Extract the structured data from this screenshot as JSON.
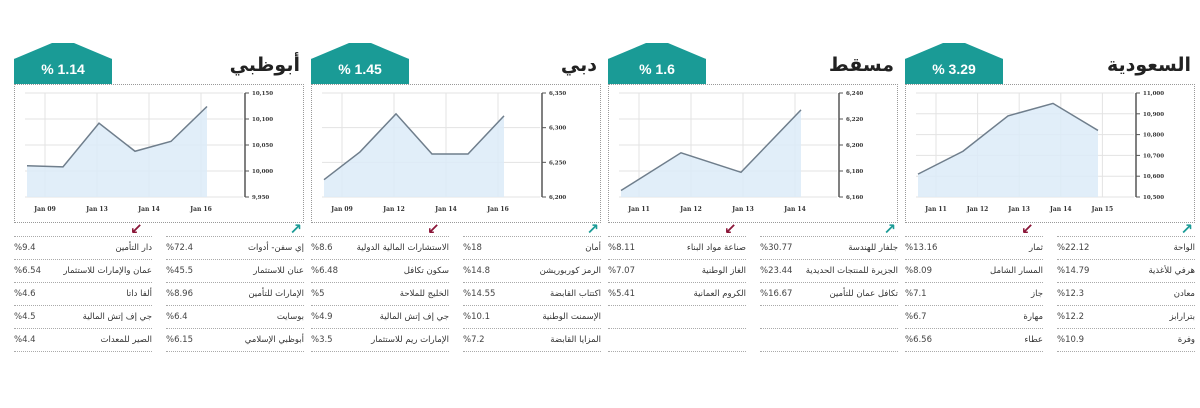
{
  "colors": {
    "accent": "#1a9b96",
    "down": "#8a1538",
    "area_fill": "#dcebf8",
    "line": "#6f7e8c"
  },
  "panels": [
    {
      "id": "saudi",
      "title": "السعودية",
      "change": "% 3.29",
      "gainers": [
        {
          "name": "الواحة",
          "value": "%22.12"
        },
        {
          "name": "هرفي للأغذية",
          "value": "%14.79"
        },
        {
          "name": "معادن",
          "value": "%12.3"
        },
        {
          "name": "بترارابز",
          "value": "%12.2"
        },
        {
          "name": "وفرة",
          "value": "%10.9"
        }
      ],
      "losers": [
        {
          "name": "ثمار",
          "value": "%13.16"
        },
        {
          "name": "المسار الشامل",
          "value": "%8.09"
        },
        {
          "name": "جاز",
          "value": "%7.1"
        },
        {
          "name": "مهارة",
          "value": "%6.7"
        },
        {
          "name": "عطاء",
          "value": "%6.56"
        }
      ]
    },
    {
      "id": "muscat",
      "title": "مسقط",
      "change": "% 1.6",
      "gainers": [
        {
          "name": "جلفار للهندسة",
          "value": "%30.77"
        },
        {
          "name": "الجزيرة للمنتجات الحديدية",
          "value": "%23.44"
        },
        {
          "name": "تكافل عمان للتأمين",
          "value": "%16.67"
        },
        {
          "name": "",
          "value": ""
        },
        {
          "name": "",
          "value": ""
        }
      ],
      "losers": [
        {
          "name": "صناعة مواد البناء",
          "value": "%8.11"
        },
        {
          "name": "الغاز الوطنية",
          "value": "%7.07"
        },
        {
          "name": "الكروم العمانية",
          "value": "%5.41"
        },
        {
          "name": "",
          "value": ""
        },
        {
          "name": "",
          "value": ""
        }
      ]
    },
    {
      "id": "dubai",
      "title": "دبي",
      "change": "% 1.45",
      "gainers": [
        {
          "name": "أمان",
          "value": "%18"
        },
        {
          "name": "الرمز كوربوريشن",
          "value": "%14.8"
        },
        {
          "name": "اكتتاب القابضة",
          "value": "%14.55"
        },
        {
          "name": "الإسمنت الوطنية",
          "value": "%10.1"
        },
        {
          "name": "المزايا القابضة",
          "value": "%7.2"
        }
      ],
      "losers": [
        {
          "name": "الاستشارات المالية الدولية",
          "value": "%8.6"
        },
        {
          "name": "سكون تكافل",
          "value": "%6.48"
        },
        {
          "name": "الخليج للملاحة",
          "value": "%5"
        },
        {
          "name": "جي إف إتش المالية",
          "value": "%4.9"
        },
        {
          "name": "الإمارات ريم للاستثمار",
          "value": "%3.5"
        }
      ]
    },
    {
      "id": "abudhabi",
      "title": "أبوظبي",
      "change": "% 1.14",
      "gainers": [
        {
          "name": "إي سفن- أدوات",
          "value": "%72.4"
        },
        {
          "name": "عنان للاستثمار",
          "value": "%45.5"
        },
        {
          "name": "الإمارات للتأمين",
          "value": "%8.96"
        },
        {
          "name": "بوسايت",
          "value": "%6.4"
        },
        {
          "name": "أبوظبي الإسلامي",
          "value": "%6.15"
        }
      ],
      "losers": [
        {
          "name": "دار التأمين",
          "value": "%9.4"
        },
        {
          "name": "عمان والإمارات للاستثمار",
          "value": "%6.54"
        },
        {
          "name": "ألفا داتا",
          "value": "%4.6"
        },
        {
          "name": "جي إف إتش المالية",
          "value": "%4.5"
        },
        {
          "name": "الصير للمعدات",
          "value": "%4.4"
        }
      ]
    }
  ],
  "chart_data": [
    {
      "type": "area",
      "title": "السعودية",
      "change_label": "% 3.29",
      "x": [
        "Jan 10",
        "Jan 11",
        "Jan 12",
        "Jan 13",
        "Jan 14"
      ],
      "values": [
        10610,
        10720,
        10890,
        10950,
        10820
      ],
      "xticks": [
        "Jan 11",
        "Jan 12",
        "Jan 13",
        "Jan 14",
        "Jan 15"
      ],
      "yticks": [
        11000,
        10900,
        10800,
        10700,
        10600,
        10500
      ],
      "ylim": [
        10500,
        11000
      ],
      "grid": true,
      "y_axis_position": "right"
    },
    {
      "type": "area",
      "title": "مسقط",
      "change_label": "% 1.6",
      "x": [
        "Jan 10",
        "Jan 11",
        "Jan 12",
        "Jan 13"
      ],
      "values": [
        6165,
        6194,
        6179,
        6227
      ],
      "xticks": [
        "Jan 11",
        "Jan 12",
        "Jan 13",
        "Jan 14"
      ],
      "yticks": [
        6240,
        6220,
        6200,
        6180,
        6160
      ],
      "ylim": [
        6160,
        6240
      ],
      "grid": true,
      "y_axis_position": "right"
    },
    {
      "type": "area",
      "title": "دبي",
      "change_label": "% 1.45",
      "x": [
        "Jan 08",
        "Jan 09",
        "Jan 12",
        "Jan 13",
        "Jan 14",
        "Jan 15"
      ],
      "values": [
        6225,
        6265,
        6320,
        6262,
        6262,
        6317
      ],
      "xticks": [
        "Jan 09",
        "Jan 12",
        "Jan 14",
        "Jan 16"
      ],
      "yticks": [
        6350,
        6300,
        6250,
        6200
      ],
      "ylim": [
        6200,
        6350
      ],
      "grid": true,
      "y_axis_position": "right"
    },
    {
      "type": "area",
      "title": "أبوظبي",
      "change_label": "% 1.14",
      "x": [
        "Jan 08",
        "Jan 09",
        "Jan 12",
        "Jan 13",
        "Jan 14",
        "Jan 15"
      ],
      "values": [
        10010,
        10008,
        10092,
        10038,
        10057,
        10124
      ],
      "xticks": [
        "Jan 09",
        "Jan 13",
        "Jan 14",
        "Jan 16"
      ],
      "yticks": [
        10150,
        10100,
        10050,
        10000,
        9950
      ],
      "ylim": [
        9950,
        10150
      ],
      "grid": true,
      "y_axis_position": "right"
    }
  ]
}
